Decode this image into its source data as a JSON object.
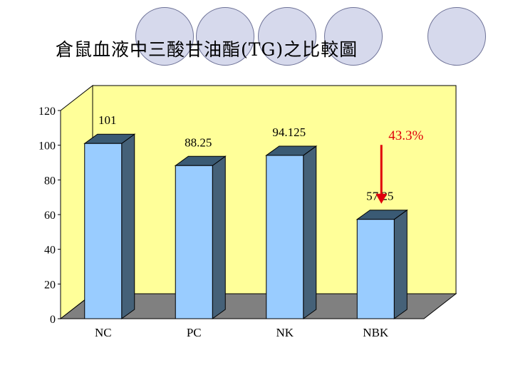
{
  "slide": {
    "title": "倉鼠血液中三酸甘油酯(TG)之比較圖"
  },
  "colors": {
    "circle_fill": "#d6d9ec",
    "circle_stroke": "#6f7398",
    "plot_back": "#ffff99",
    "plot_floor": "#808080",
    "bar_front": "#99ccff",
    "bar_side": "#456178",
    "bar_top": "#3a5a74",
    "arrow": "#e0000b",
    "annotation": "#e0000b"
  },
  "chart_data": {
    "type": "bar",
    "title": "",
    "xlabel": "",
    "ylabel": "",
    "categories": [
      "NC",
      "PC",
      "NK",
      "NBK"
    ],
    "values": [
      101,
      88.25,
      94.125,
      57.25
    ],
    "data_labels": [
      "101",
      "88.25",
      "94.125",
      "57.25"
    ],
    "ylim": [
      0,
      120
    ],
    "yticks": [
      0,
      20,
      40,
      60,
      80,
      100,
      120
    ],
    "grid": false,
    "legend": "none",
    "style": "3d-column",
    "annotation": {
      "text": "43.3%",
      "arrow": "down",
      "series_target": "NBK"
    }
  }
}
